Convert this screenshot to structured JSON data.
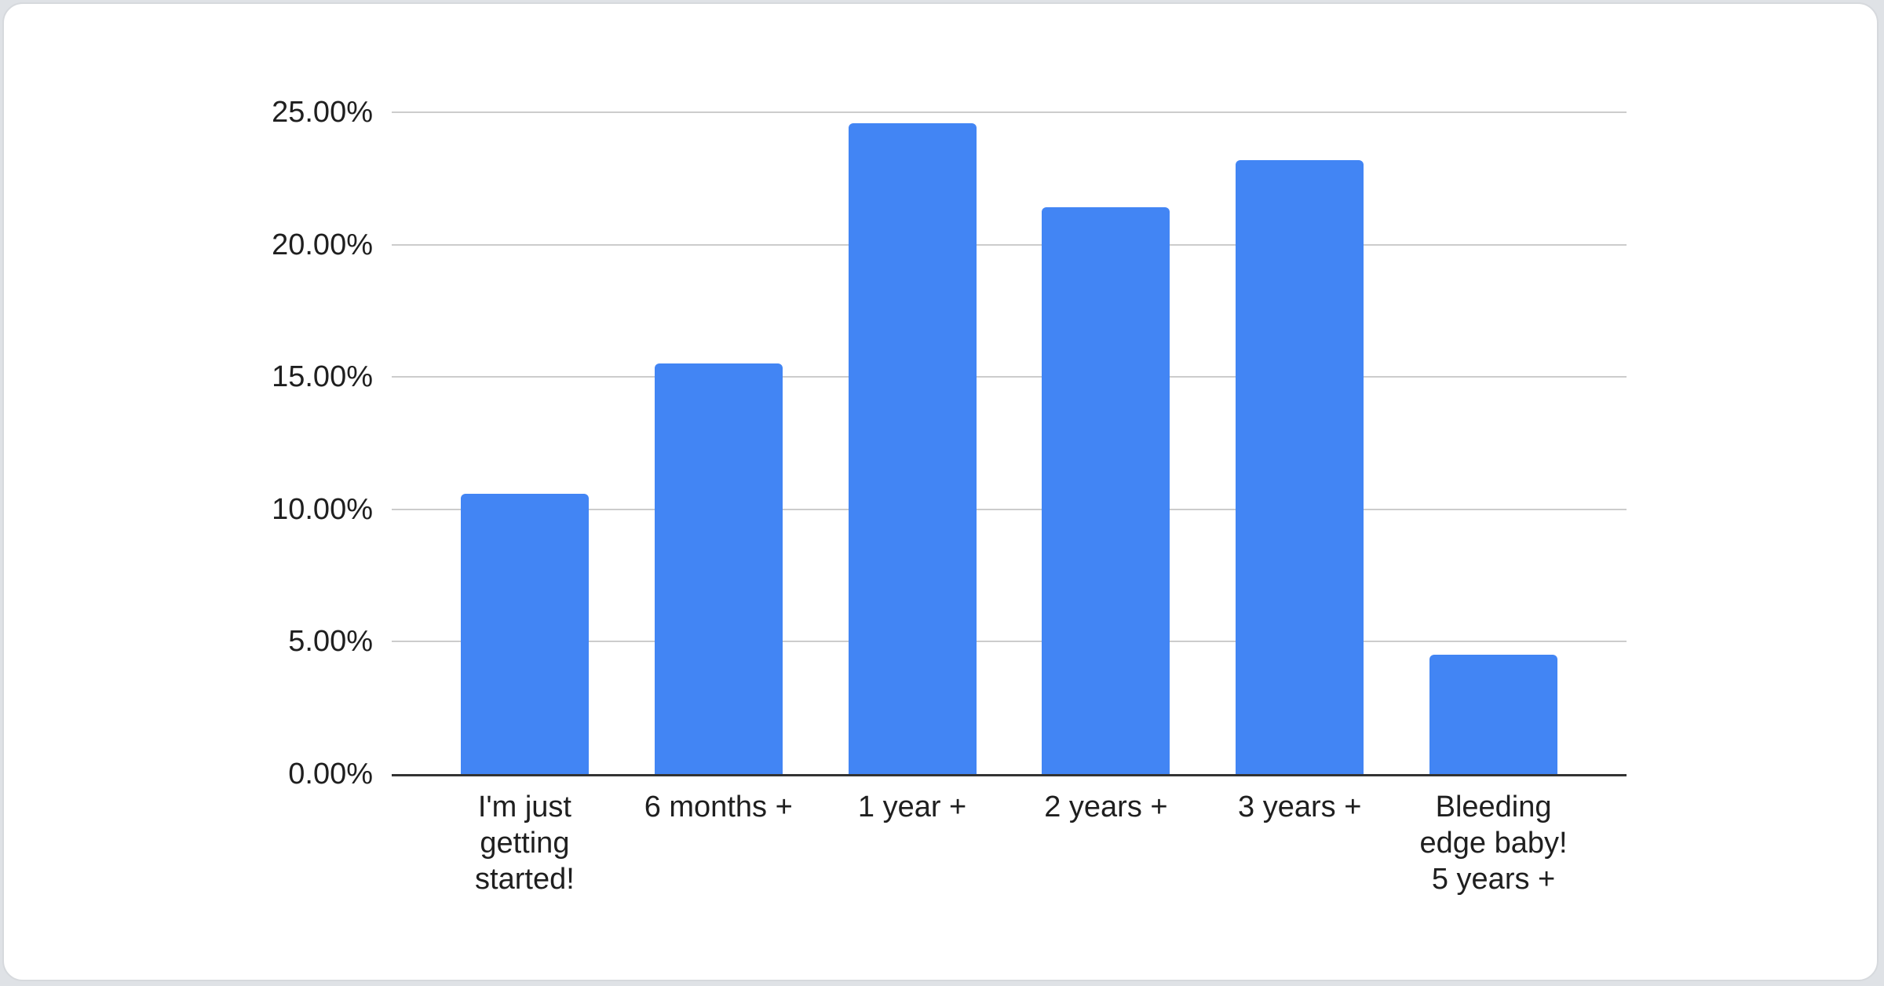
{
  "page": {
    "background_color": "#dfe2e6",
    "card_background": "#ffffff",
    "card_border_color": "#d6d9dd"
  },
  "chart_data": {
    "type": "bar",
    "title": "",
    "xlabel": "",
    "ylabel": "",
    "categories": [
      "I'm just getting started!",
      "6 months +",
      "1 year +",
      "2 years +",
      "3 years +",
      "Bleeding edge baby! 5 years +"
    ],
    "category_lines": [
      [
        "I'm just",
        "getting",
        "started!"
      ],
      [
        "6 months +"
      ],
      [
        "1 year +"
      ],
      [
        "2 years +"
      ],
      [
        "3 years +"
      ],
      [
        "Bleeding",
        "edge baby!",
        "5 years +"
      ]
    ],
    "values": [
      10.6,
      15.5,
      24.6,
      21.4,
      23.2,
      4.5
    ],
    "value_unit": "%",
    "ylim": [
      0,
      25
    ],
    "y_ticks": [
      {
        "value": 25,
        "label": "25.00%"
      },
      {
        "value": 20,
        "label": "20.00%"
      },
      {
        "value": 15,
        "label": "15.00%"
      },
      {
        "value": 10,
        "label": "10.00%"
      },
      {
        "value": 5,
        "label": "5.00%"
      },
      {
        "value": 0,
        "label": "0.00%"
      }
    ],
    "grid": true,
    "legend_position": "none",
    "bar_color": "#4285f4",
    "gridline_color": "#cccccc",
    "axis_color": "#333333",
    "text_color": "#1f1f1f"
  }
}
